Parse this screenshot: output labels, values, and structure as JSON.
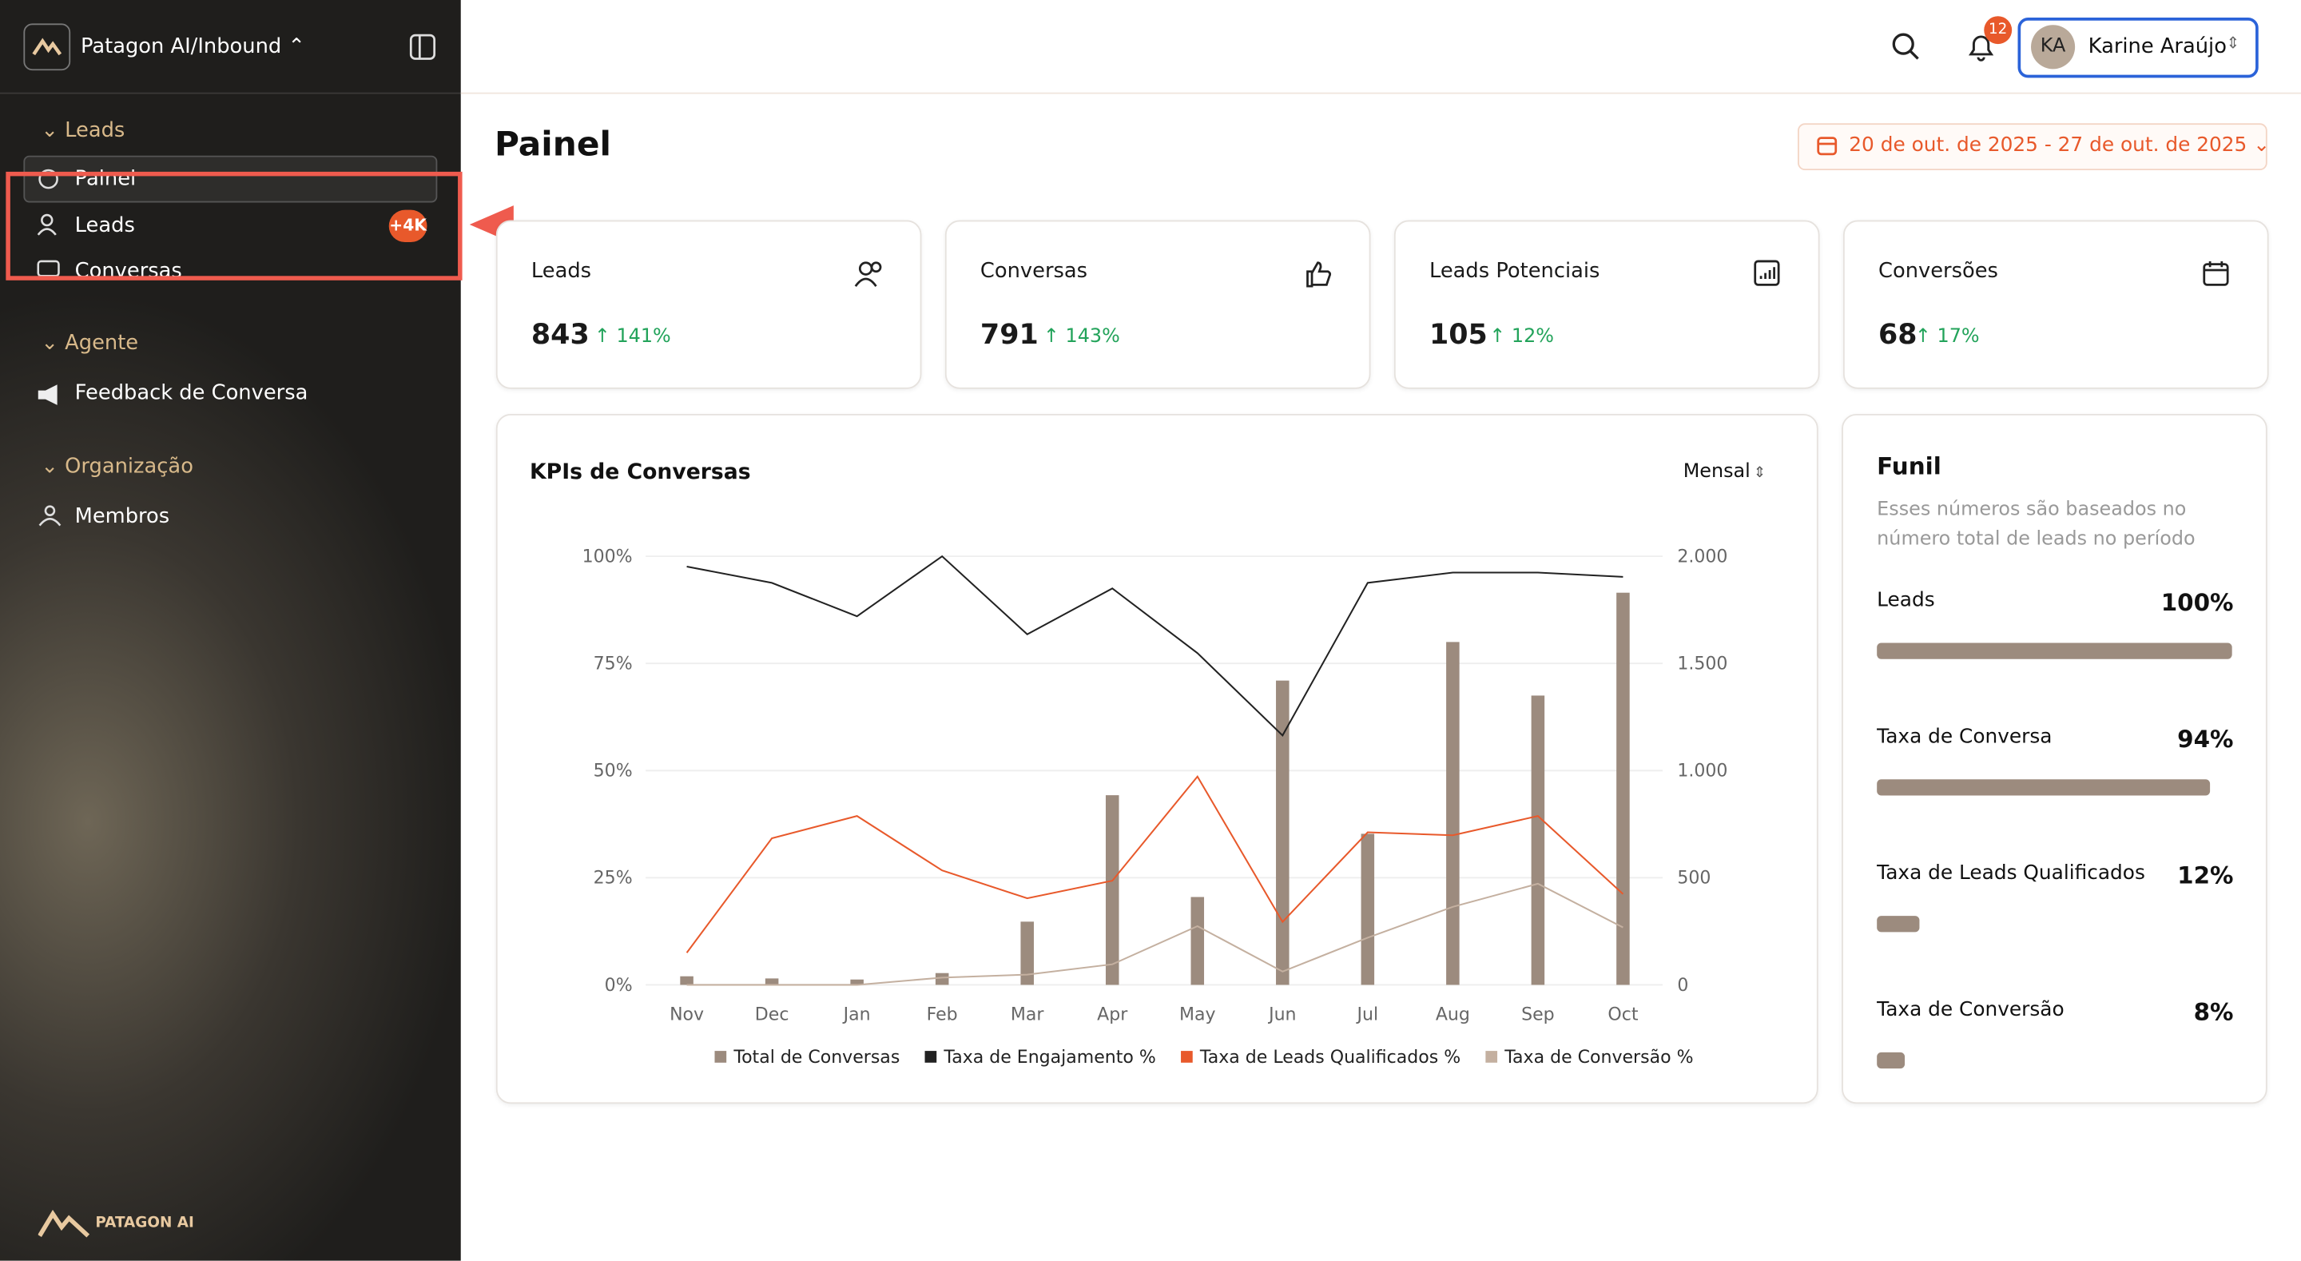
{
  "sidebar": {
    "workspace": "Patagon AI/Inbound",
    "sections": [
      {
        "title": "Leads",
        "items": [
          {
            "label": "Painel"
          },
          {
            "label": "Leads",
            "badge": "+4K"
          },
          {
            "label": "Conversas"
          }
        ]
      },
      {
        "title": "Agente",
        "items": [
          {
            "label": "Feedback de Conversa"
          }
        ]
      },
      {
        "title": "Organização",
        "items": [
          {
            "label": "Membros"
          }
        ]
      }
    ],
    "footer": "PATAGON AI"
  },
  "topbar": {
    "notifications": "12",
    "initials": "KA",
    "user": "Karine Araújo"
  },
  "page": {
    "title": "Painel",
    "date_range": "20 de out. de 2025 - 27 de out. de 2025"
  },
  "kpis": [
    {
      "label": "Leads",
      "value": "843",
      "delta": "141%"
    },
    {
      "label": "Conversas",
      "value": "791",
      "delta": "143%"
    },
    {
      "label": "Leads Potenciais",
      "value": "105",
      "delta": "12%"
    },
    {
      "label": "Conversões",
      "value": "68",
      "delta": "17%"
    }
  ],
  "funnel": {
    "title": "Funil",
    "description": "Esses números são baseados no número total de leads no período",
    "items": [
      {
        "name": "Leads",
        "value": 100,
        "label": "100%"
      },
      {
        "name": "Taxa de Conversa",
        "value": 94,
        "label": "94%"
      },
      {
        "name": "Taxa de Leads Qualificados",
        "value": 12,
        "label": "12%"
      },
      {
        "name": "Taxa de Conversão",
        "value": 8,
        "label": "8%"
      }
    ]
  },
  "chart_data": {
    "type": "combo",
    "title": "KPIs de Conversas",
    "period": "Mensal",
    "categories": [
      "Nov",
      "Dec",
      "Jan",
      "Feb",
      "Mar",
      "Apr",
      "May",
      "Jun",
      "Jul",
      "Aug",
      "Sep",
      "Oct"
    ],
    "ylim": [
      0,
      100
    ],
    "yticks": [
      {
        "value": 0,
        "label": "0%"
      },
      {
        "value": 25,
        "label": "25%"
      },
      {
        "value": 50,
        "label": "50%"
      },
      {
        "value": 75,
        "label": "75%"
      },
      {
        "value": 100,
        "label": "100%"
      }
    ],
    "y2lim": [
      0,
      2000
    ],
    "y2ticks": [
      0,
      500,
      {
        "value": 1000,
        "label": "1.000"
      },
      {
        "value": 1500,
        "label": "1.500"
      },
      {
        "value": 2000,
        "label": "2.000"
      }
    ],
    "grid": true,
    "series": [
      {
        "name": "Total de Conversas",
        "type": "bar",
        "axis": "y2",
        "color": "#9c8b7e",
        "values": [
          40,
          30,
          25,
          55,
          295,
          885,
          410,
          1420,
          705,
          1600,
          1350,
          1830
        ]
      },
      {
        "name": "Taxa de Engajamento %",
        "type": "line",
        "color": "#222222",
        "values": [
          97.6,
          93.8,
          86,
          100,
          81.8,
          92.5,
          77.4,
          58.2,
          93.8,
          96.2,
          96.2,
          95.2
        ]
      },
      {
        "name": "Taxa de Leads Qualificados %",
        "type": "line",
        "color": "#e8592b",
        "values": [
          7.5,
          34.2,
          39.4,
          26.7,
          20.2,
          24.3,
          48.6,
          14.7,
          35.6,
          34.9,
          39.4,
          21.2
        ]
      },
      {
        "name": "Taxa de Conversão %",
        "type": "line",
        "color": "#c4b0a0",
        "values": [
          0,
          0,
          0,
          1.7,
          2.4,
          4.8,
          13.7,
          3.1,
          11,
          18.2,
          23.6,
          13.4
        ]
      }
    ]
  }
}
